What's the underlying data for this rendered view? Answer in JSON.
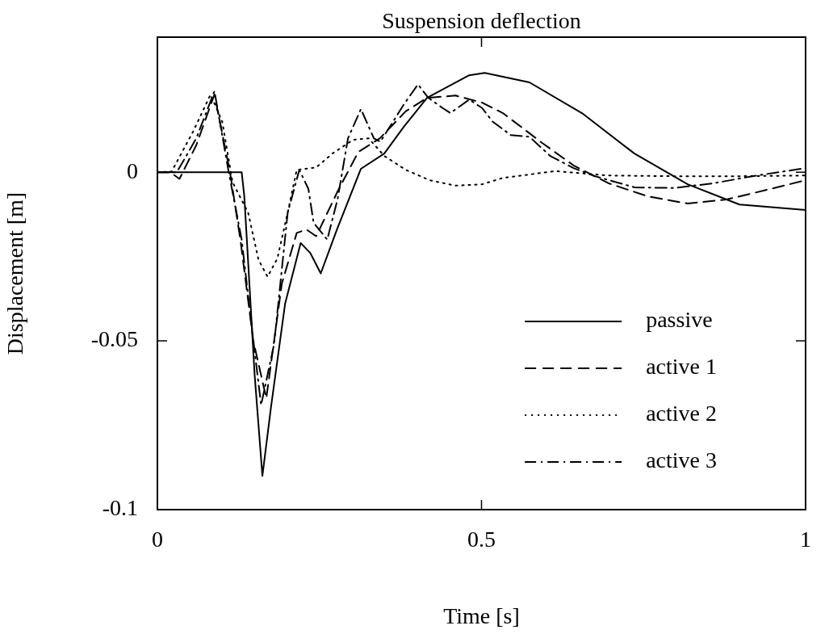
{
  "chart_data": {
    "type": "line",
    "title": "Suspension deflection",
    "xlabel": "Time [s]",
    "ylabel": "Displacement [m]",
    "xlim": [
      0,
      1
    ],
    "xticks": [
      0,
      0.5,
      1
    ],
    "ylim": [
      -0.1,
      0.04
    ],
    "yticks": [
      -0.1,
      -0.05,
      0
    ],
    "grid": false,
    "legend": "bottom right",
    "marker": "none",
    "series": [
      {
        "name": "passive",
        "color": "#000000",
        "line_style": "solid",
        "x": [
          0,
          0.13,
          0.134,
          0.138,
          0.15,
          0.162,
          0.175,
          0.197,
          0.221,
          0.236,
          0.252,
          0.277,
          0.314,
          0.35,
          0.38,
          0.416,
          0.481,
          0.505,
          0.574,
          0.655,
          0.736,
          0.818,
          0.898,
          1.0
        ],
        "values": [
          0,
          0,
          -0.007,
          -0.02,
          -0.06,
          -0.09,
          -0.07,
          -0.039,
          -0.021,
          -0.024,
          -0.03,
          -0.017,
          0.001,
          0.0055,
          0.0134,
          0.022,
          0.0287,
          0.0294,
          0.0266,
          0.0175,
          0.0055,
          -0.0036,
          -0.0096,
          -0.0112
        ]
      },
      {
        "name": "active 1",
        "color": "#000000",
        "line_style": "dashed",
        "x": [
          0,
          0.02,
          0.034,
          0.06,
          0.088,
          0.112,
          0.128,
          0.148,
          0.168,
          0.192,
          0.215,
          0.23,
          0.245,
          0.278,
          0.31,
          0.343,
          0.383,
          0.416,
          0.46,
          0.501,
          0.533,
          0.594,
          0.642,
          0.696,
          0.757,
          0.818,
          0.878,
          0.939,
          1.0
        ],
        "values": [
          0,
          0,
          -0.002,
          0.008,
          0.023,
          0,
          -0.02,
          -0.05,
          -0.067,
          -0.033,
          -0.018,
          -0.017,
          -0.019,
          -0.0057,
          0.006,
          0.01,
          0.018,
          0.022,
          0.0227,
          0.0206,
          0.0175,
          0.0086,
          0.002,
          -0.0033,
          -0.0072,
          -0.0093,
          -0.0081,
          -0.0053,
          -0.0024
        ]
      },
      {
        "name": "active 2",
        "color": "#000000",
        "line_style": "dotted",
        "x": [
          0,
          0.022,
          0.055,
          0.082,
          0.1,
          0.116,
          0.14,
          0.156,
          0.17,
          0.185,
          0.201,
          0.215,
          0.245,
          0.27,
          0.302,
          0.326,
          0.35,
          0.383,
          0.42,
          0.46,
          0.501,
          0.533,
          0.614,
          0.696,
          0.797,
          0.898,
          1.0
        ],
        "values": [
          0,
          0.0002,
          0.012,
          0.023,
          0.015,
          -0.003,
          -0.012,
          -0.026,
          -0.031,
          -0.0256,
          -0.012,
          0.0007,
          0.0014,
          0.0055,
          0.0096,
          0.01,
          0.0048,
          0.0007,
          -0.0024,
          -0.004,
          -0.0036,
          -0.0017,
          0.0003,
          -0.001,
          -0.0012,
          -0.0012,
          -0.001
        ]
      },
      {
        "name": "active 3",
        "color": "#000000",
        "line_style": "dashdot",
        "x": [
          0,
          0.03,
          0.06,
          0.088,
          0.11,
          0.13,
          0.145,
          0.16,
          0.18,
          0.201,
          0.219,
          0.233,
          0.241,
          0.262,
          0.278,
          0.294,
          0.314,
          0.334,
          0.344,
          0.38,
          0.402,
          0.418,
          0.44,
          0.452,
          0.481,
          0.501,
          0.517,
          0.545,
          0.574,
          0.606,
          0.642,
          0.675,
          0.736,
          0.797,
          0.858,
          0.918,
          1.0
        ],
        "values": [
          0,
          0,
          0.01,
          0.024,
          0,
          -0.02,
          -0.045,
          -0.069,
          -0.051,
          -0.012,
          0.0007,
          -0.005,
          -0.015,
          -0.02,
          -0.008,
          0.01,
          0.0187,
          0.01,
          0.009,
          0.02,
          0.026,
          0.022,
          0.019,
          0.0175,
          0.0215,
          0.019,
          0.015,
          0.011,
          0.0105,
          0.0048,
          0.0012,
          -0.0012,
          -0.0045,
          -0.0047,
          -0.0033,
          -0.0012,
          0.0012
        ]
      }
    ]
  }
}
